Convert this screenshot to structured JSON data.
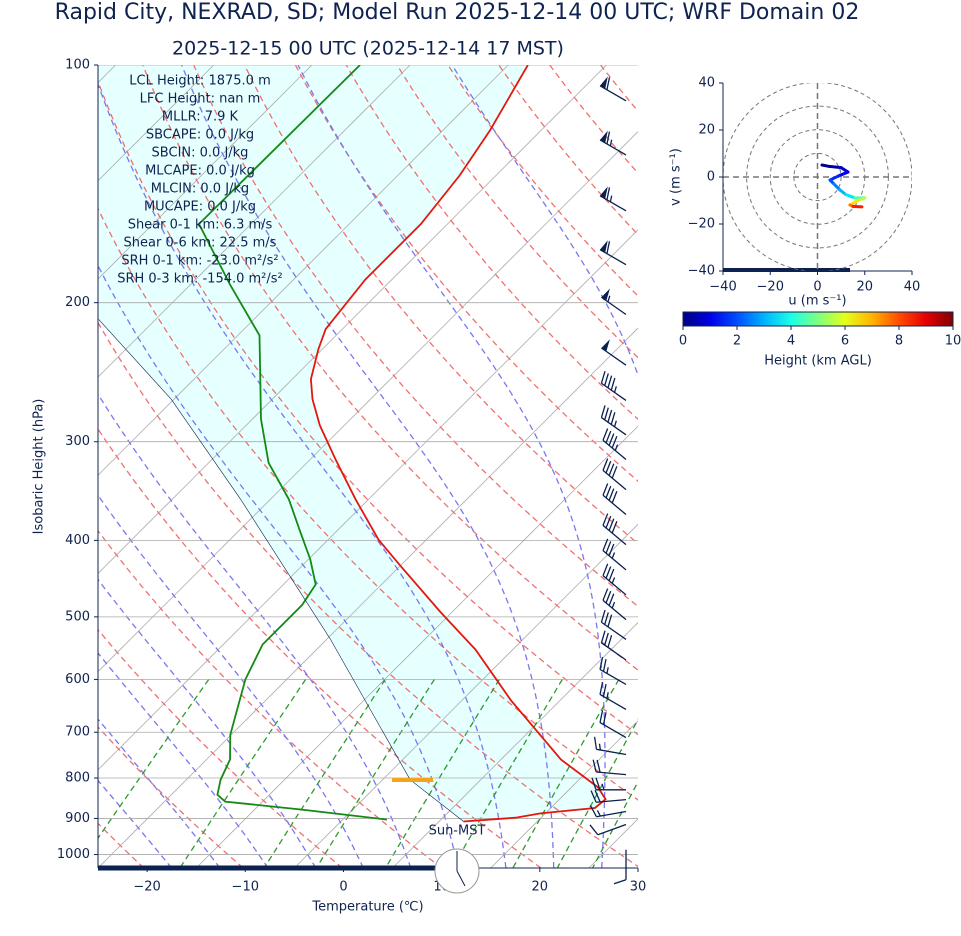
{
  "title": "Rapid City, NEXRAD, SD; Model Run 2025-12-14 00 UTC; WRF Domain 02",
  "chart_data": [
    {
      "type": "skewt",
      "subtitle": "2025-12-15 00 UTC  (2025-12-14 17 MST)",
      "xlabel": "Temperature (℃)",
      "ylabel": "Isobaric Height (hPa)",
      "xlim": [
        -25,
        30
      ],
      "ylim": [
        1040,
        100
      ],
      "log_y": true,
      "grid": true,
      "xticks": [
        {
          "value": -20,
          "label": "−20"
        },
        {
          "value": -10,
          "label": "−10"
        },
        0,
        10,
        20,
        30
      ],
      "yticks": [
        100,
        200,
        300,
        400,
        500,
        600,
        700,
        800,
        900,
        1000
      ],
      "series": [
        {
          "color": "#e3170d",
          "pressure": [
            908,
            898,
            887,
            873,
            851,
            822,
            758,
            637,
            550,
            493,
            430,
            399,
            355,
            316,
            286,
            265,
            250,
            229,
            216,
            187,
            159,
            138,
            121,
            100
          ],
          "values": [
            7.5,
            12.4,
            14.5,
            19.5,
            19.7,
            17.7,
            11.1,
            -0.1,
            -8.8,
            -16.2,
            -25.1,
            -29.9,
            -36.3,
            -42.4,
            -47.5,
            -50.9,
            -53.1,
            -55.4,
            -56.7,
            -57.7,
            -57.7,
            -58.7,
            -60.2,
            -63
          ]
        },
        {
          "color": "#138a13",
          "pressure": [
            903,
            877,
            857,
            840,
            804,
            758,
            705,
            600,
            542,
            483,
            455,
            423,
            388,
            355,
            319,
            281,
            220,
            190,
            159,
            100
          ],
          "values": [
            -0.5,
            -10.3,
            -18.8,
            -20.3,
            -21.5,
            -22.6,
            -25.1,
            -29.2,
            -31,
            -31,
            -31.7,
            -34.8,
            -38.9,
            -43.1,
            -48.9,
            -54.1,
            -62.8,
            -70.9,
            -80.3,
            -80.1
          ]
        },
        {
          "color": "#0a2050",
          "pressure": [
            908,
            804,
            534,
            355,
            265,
            210
          ],
          "values": [
            7.5,
            -2.2,
            -24.6,
            -48,
            -65.3,
            -80.8
          ]
        }
      ],
      "winds": {
        "color": "#0a2050",
        "pressure": [
          111,
          130,
          153,
          179,
          207,
          240,
          266,
          294,
          316,
          345,
          371,
          405,
          436,
          469,
          504,
          534,
          567,
          609,
          655,
          711,
          747,
          792,
          828,
          852,
          882,
          916,
          986
        ],
        "speed": [
          60,
          65,
          65,
          60,
          55,
          50,
          45,
          45,
          45,
          40,
          40,
          40,
          35,
          35,
          35,
          30,
          30,
          25,
          25,
          20,
          15,
          20,
          25,
          20,
          15,
          10,
          10
        ],
        "direction": [
          300,
          300,
          300,
          300,
          305,
          305,
          305,
          305,
          310,
          310,
          310,
          310,
          310,
          310,
          310,
          305,
          305,
          300,
          300,
          300,
          280,
          275,
          270,
          265,
          260,
          250,
          180
        ]
      },
      "annotations": [
        "LCL Height: 1875.0 m",
        "LFC Height: nan m",
        "MLLR: 7.9 K",
        "SBCAPE: 0.0 J/kg",
        "SBCIN: 0.0 J/kg",
        "MLCAPE: 0.0 J/kg",
        "MLCIN: 0.0 J/kg",
        "MUCAPE: 0.0 J/kg",
        "Shear 0-1 km: 6.3 m/s",
        "Shear 0-6 km: 22.5 m/s",
        "SRH 0-1 km: -23.0 m²/s²",
        "SRH 0-3 km: -154.0 m²/s²"
      ],
      "clock_label": "Sun-MST"
    },
    {
      "type": "hodograph",
      "xlabel": "u (m s⁻¹)",
      "ylabel": "v (m s⁻¹)",
      "xlim": [
        -40,
        40
      ],
      "ylim": [
        -40,
        40
      ],
      "xticks": [
        {
          "value": -40,
          "label": "−40"
        },
        {
          "value": -20,
          "label": "−20"
        },
        0,
        20,
        40
      ],
      "yticks": [
        {
          "value": -40,
          "label": "−40"
        },
        {
          "value": -20,
          "label": "−20"
        },
        0,
        20,
        40
      ],
      "u": [
        1.9,
        5,
        10,
        12.9,
        9,
        5.3,
        7,
        9.5,
        12,
        15.9,
        20,
        17,
        13.7,
        15,
        18.8
      ],
      "v": [
        5.1,
        4.5,
        4,
        2.1,
        0.5,
        -1.3,
        -3,
        -5.5,
        -7.5,
        -8.9,
        -8.9,
        -10,
        -11.9,
        -12.5,
        -12.7
      ],
      "height": [
        0,
        0.4,
        0.8,
        1.2,
        1.6,
        2,
        2.5,
        3,
        3.5,
        4.5,
        5.5,
        6.5,
        7.5,
        8.5,
        9.5
      ],
      "colorbar": {
        "label": "Height (km AGL)",
        "lim": [
          0,
          10
        ],
        "ticks": [
          0,
          2,
          4,
          6,
          8,
          10
        ]
      }
    }
  ]
}
